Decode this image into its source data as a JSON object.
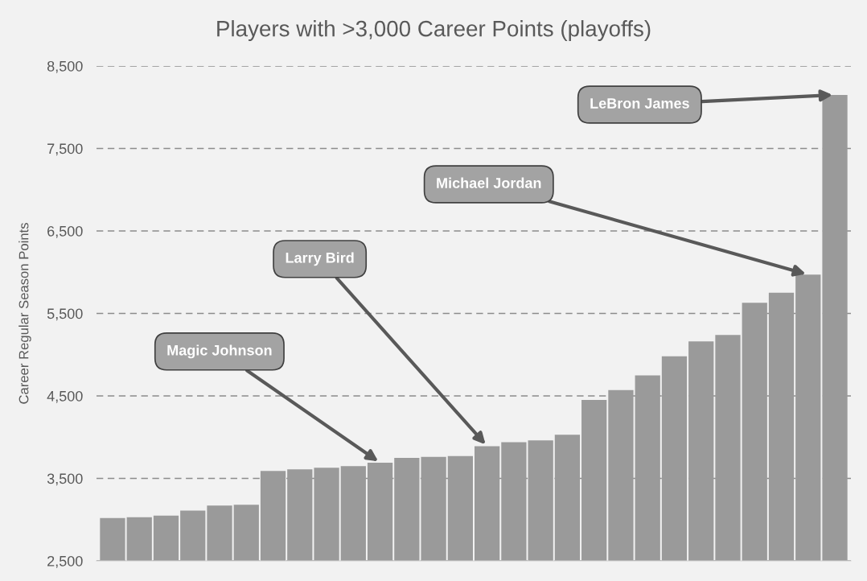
{
  "chart_data": {
    "type": "bar",
    "title": "Players with >3,000 Career Points (playoffs)",
    "ylabel": "Career Regular Season Points",
    "categories": [
      null,
      null,
      null,
      null,
      null,
      null,
      null,
      null,
      null,
      null,
      null,
      null,
      null,
      null,
      null,
      null,
      null,
      null,
      null,
      null,
      null,
      null,
      null,
      null,
      null,
      null,
      null,
      null
    ],
    "values": [
      3020,
      3030,
      3050,
      3110,
      3170,
      3180,
      3590,
      3610,
      3630,
      3650,
      3690,
      3750,
      3760,
      3770,
      3890,
      3940,
      3960,
      4030,
      4450,
      4570,
      4750,
      4980,
      5160,
      5240,
      5630,
      5750,
      5970,
      8150
    ],
    "color": "#9a9a9a",
    "ylim": [
      2500,
      8500
    ],
    "yticks": [
      {
        "value": 2500,
        "label": "2,500"
      },
      {
        "value": 3500,
        "label": "3,500"
      },
      {
        "value": 4500,
        "label": "4,500"
      },
      {
        "value": 5500,
        "label": "5,500"
      },
      {
        "value": 6500,
        "label": "6,500"
      },
      {
        "value": 7500,
        "label": "7,500"
      },
      {
        "value": 8500,
        "label": "8,500"
      }
    ],
    "grid": "y",
    "annotations": [
      "Magic Johnson",
      "Larry Bird",
      "Michael Jordan",
      "LeBron James"
    ]
  }
}
